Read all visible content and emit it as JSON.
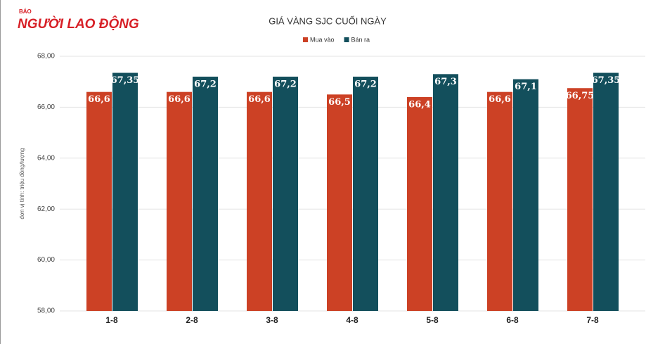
{
  "header": {
    "brand_small": "BÁO",
    "brand": "NGƯỜI LAO ĐỘNG"
  },
  "chart_data": {
    "type": "bar",
    "title": "GIÁ VÀNG SJC CUỐI NGÀY",
    "y_label": "đơn vị tính: triệu đồng/lượng",
    "categories": [
      "1-8",
      "2-8",
      "3-8",
      "4-8",
      "5-8",
      "6-8",
      "7-8"
    ],
    "series": [
      {
        "name": "Mua vào",
        "color": "#cc4125",
        "values": [
          66.6,
          66.6,
          66.6,
          66.5,
          66.4,
          66.6,
          66.75
        ],
        "value_labels": [
          "66,6",
          "66,6",
          "66,6",
          "66,5",
          "66,4",
          "66,6",
          "66,75"
        ]
      },
      {
        "name": "Bán ra",
        "color": "#134f5c",
        "values": [
          67.35,
          67.2,
          67.2,
          67.2,
          67.3,
          67.1,
          67.35
        ],
        "value_labels": [
          "67,35",
          "67,2",
          "67,2",
          "67,2",
          "67,3",
          "67,1",
          "67,35"
        ]
      }
    ],
    "ylim": [
      58,
      68
    ],
    "yticks": [
      {
        "value": 58,
        "label": "58,00"
      },
      {
        "value": 60,
        "label": "60,00"
      },
      {
        "value": 62,
        "label": "62,00"
      },
      {
        "value": 64,
        "label": "64,00"
      },
      {
        "value": 66,
        "label": "66,00"
      },
      {
        "value": 68,
        "label": "68,00"
      }
    ],
    "grid": true
  }
}
